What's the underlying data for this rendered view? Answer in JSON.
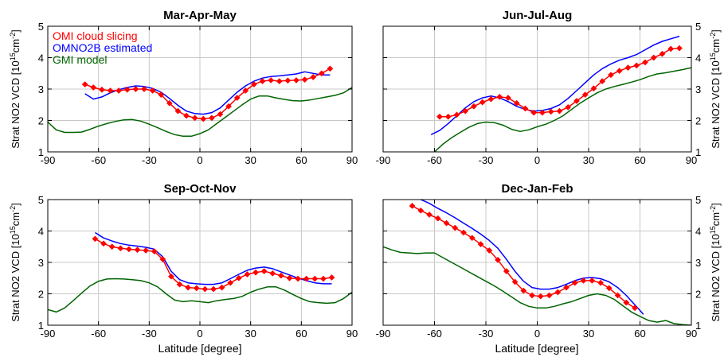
{
  "figure": {
    "xlabel": "Latitude [degree]",
    "ylabel": "Strat NO2 VCD [10",
    "ylabel_exp": "15",
    "ylabel_unit": "cm",
    "ylabel_unit_exp": "-2",
    "ylabel_close": "]"
  },
  "legend": {
    "entries": [
      {
        "name": "OMI cloud slicing",
        "color": "#ff0000"
      },
      {
        "name": "OMNO2B estimated",
        "color": "#0000ff"
      },
      {
        "name": "GMI model",
        "color": "#006400"
      }
    ]
  },
  "chart_data": [
    {
      "type": "line",
      "title": "Mar-Apr-May",
      "xlim": [
        -90,
        90
      ],
      "ylim": [
        1,
        5
      ],
      "xticks": [
        -90,
        -60,
        -30,
        0,
        30,
        60,
        90
      ],
      "yticks": [
        1,
        2,
        3,
        4,
        5
      ],
      "grid": true,
      "series": [
        {
          "name": "OMI cloud slicing",
          "color": "#ff0000",
          "marker": "diamond",
          "x": [
            -68,
            -63,
            -58,
            -53,
            -48,
            -43,
            -38,
            -33,
            -28,
            -23,
            -18,
            -13,
            -8,
            -3,
            2,
            7,
            12,
            17,
            22,
            27,
            32,
            37,
            42,
            47,
            52,
            57,
            62,
            67,
            72,
            77
          ],
          "y": [
            3.15,
            3.05,
            2.98,
            2.95,
            2.95,
            2.98,
            3.0,
            3.0,
            2.95,
            2.82,
            2.55,
            2.3,
            2.15,
            2.08,
            2.05,
            2.08,
            2.2,
            2.45,
            2.72,
            2.95,
            3.15,
            3.25,
            3.28,
            3.25,
            3.27,
            3.28,
            3.3,
            3.38,
            3.5,
            3.65
          ]
        },
        {
          "name": "OMNO2B estimated",
          "color": "#0000ff",
          "x": [
            -68,
            -63,
            -58,
            -53,
            -48,
            -43,
            -38,
            -33,
            -28,
            -23,
            -18,
            -13,
            -8,
            -3,
            2,
            7,
            12,
            17,
            22,
            27,
            32,
            37,
            42,
            47,
            52,
            57,
            62,
            67,
            72,
            77
          ],
          "y": [
            2.85,
            2.68,
            2.75,
            2.88,
            2.98,
            3.05,
            3.1,
            3.08,
            3.02,
            2.9,
            2.7,
            2.48,
            2.3,
            2.22,
            2.2,
            2.25,
            2.4,
            2.65,
            2.9,
            3.1,
            3.25,
            3.35,
            3.4,
            3.42,
            3.45,
            3.48,
            3.55,
            3.5,
            3.45,
            3.45
          ]
        },
        {
          "name": "GMI model",
          "color": "#006400",
          "x": [
            -90,
            -85,
            -80,
            -75,
            -70,
            -65,
            -60,
            -55,
            -50,
            -45,
            -40,
            -35,
            -30,
            -25,
            -20,
            -15,
            -10,
            -5,
            0,
            5,
            10,
            15,
            20,
            25,
            30,
            35,
            40,
            45,
            50,
            55,
            60,
            65,
            70,
            75,
            80,
            85,
            90
          ],
          "y": [
            1.95,
            1.7,
            1.62,
            1.62,
            1.63,
            1.72,
            1.82,
            1.9,
            1.97,
            2.02,
            2.03,
            1.98,
            1.88,
            1.77,
            1.65,
            1.55,
            1.5,
            1.5,
            1.58,
            1.7,
            1.9,
            2.1,
            2.3,
            2.5,
            2.68,
            2.78,
            2.78,
            2.72,
            2.67,
            2.63,
            2.62,
            2.65,
            2.7,
            2.75,
            2.8,
            2.88,
            3.05
          ]
        }
      ]
    },
    {
      "type": "line",
      "title": "Jun-Jul-Aug",
      "xlim": [
        -90,
        90
      ],
      "ylim": [
        1,
        5
      ],
      "xticks": [
        -90,
        -60,
        -30,
        0,
        30,
        60,
        90
      ],
      "yticks": [
        1,
        2,
        3,
        4,
        5
      ],
      "grid": true,
      "series": [
        {
          "name": "OMI cloud slicing",
          "color": "#ff0000",
          "marker": "diamond",
          "x": [
            -57,
            -52,
            -47,
            -42,
            -37,
            -32,
            -27,
            -22,
            -17,
            -12,
            -7,
            -2,
            3,
            8,
            13,
            18,
            23,
            28,
            33,
            38,
            43,
            48,
            53,
            58,
            63,
            68,
            73,
            78,
            83
          ],
          "y": [
            2.12,
            2.12,
            2.18,
            2.3,
            2.45,
            2.58,
            2.68,
            2.75,
            2.72,
            2.55,
            2.38,
            2.25,
            2.25,
            2.28,
            2.3,
            2.42,
            2.62,
            2.82,
            3.02,
            3.25,
            3.45,
            3.58,
            3.68,
            3.75,
            3.85,
            4.0,
            4.12,
            4.28,
            4.3
          ]
        },
        {
          "name": "OMNO2B estimated",
          "color": "#0000ff",
          "x": [
            -62,
            -57,
            -52,
            -47,
            -42,
            -37,
            -32,
            -27,
            -22,
            -17,
            -12,
            -7,
            -2,
            3,
            8,
            13,
            18,
            23,
            28,
            33,
            38,
            43,
            48,
            53,
            58,
            63,
            68,
            73,
            78,
            83
          ],
          "y": [
            1.55,
            1.68,
            1.9,
            2.15,
            2.4,
            2.6,
            2.72,
            2.78,
            2.72,
            2.6,
            2.45,
            2.35,
            2.3,
            2.32,
            2.38,
            2.5,
            2.7,
            2.95,
            3.2,
            3.45,
            3.65,
            3.8,
            3.92,
            4.0,
            4.1,
            4.25,
            4.4,
            4.52,
            4.6,
            4.68
          ]
        },
        {
          "name": "GMI model",
          "color": "#006400",
          "x": [
            -60,
            -55,
            -50,
            -45,
            -40,
            -35,
            -30,
            -25,
            -20,
            -15,
            -10,
            -5,
            0,
            5,
            10,
            15,
            20,
            25,
            30,
            35,
            40,
            45,
            50,
            55,
            60,
            65,
            70,
            75,
            80,
            85,
            90
          ],
          "y": [
            1.0,
            1.25,
            1.45,
            1.62,
            1.78,
            1.9,
            1.95,
            1.93,
            1.85,
            1.72,
            1.65,
            1.7,
            1.8,
            1.88,
            2.0,
            2.15,
            2.35,
            2.55,
            2.72,
            2.88,
            3.0,
            3.08,
            3.15,
            3.22,
            3.3,
            3.4,
            3.48,
            3.52,
            3.57,
            3.62,
            3.68
          ]
        }
      ]
    },
    {
      "type": "line",
      "title": "Sep-Oct-Nov",
      "xlim": [
        -90,
        90
      ],
      "ylim": [
        1,
        5
      ],
      "xticks": [
        -90,
        -60,
        -30,
        0,
        30,
        60,
        90
      ],
      "yticks": [
        1,
        2,
        3,
        4,
        5
      ],
      "grid": true,
      "series": [
        {
          "name": "OMI cloud slicing",
          "color": "#ff0000",
          "marker": "diamond",
          "x": [
            -62,
            -57,
            -52,
            -47,
            -42,
            -37,
            -32,
            -27,
            -22,
            -17,
            -12,
            -7,
            -2,
            3,
            8,
            13,
            18,
            23,
            28,
            33,
            38,
            43,
            48,
            53,
            58,
            63,
            68,
            73,
            78
          ],
          "y": [
            3.75,
            3.6,
            3.5,
            3.45,
            3.42,
            3.4,
            3.38,
            3.35,
            3.1,
            2.55,
            2.3,
            2.2,
            2.18,
            2.15,
            2.15,
            2.2,
            2.35,
            2.5,
            2.62,
            2.68,
            2.72,
            2.65,
            2.58,
            2.5,
            2.48,
            2.48,
            2.48,
            2.48,
            2.52
          ]
        },
        {
          "name": "OMNO2B estimated",
          "color": "#0000ff",
          "x": [
            -62,
            -57,
            -52,
            -47,
            -42,
            -37,
            -32,
            -27,
            -22,
            -17,
            -12,
            -7,
            -2,
            3,
            8,
            13,
            18,
            23,
            28,
            33,
            38,
            43,
            48,
            53,
            58,
            63,
            68,
            73,
            78
          ],
          "y": [
            3.95,
            3.78,
            3.68,
            3.6,
            3.55,
            3.52,
            3.48,
            3.42,
            3.18,
            2.72,
            2.45,
            2.35,
            2.32,
            2.3,
            2.3,
            2.35,
            2.48,
            2.62,
            2.75,
            2.82,
            2.85,
            2.8,
            2.7,
            2.6,
            2.5,
            2.42,
            2.35,
            2.32,
            2.32
          ]
        },
        {
          "name": "GMI model",
          "color": "#006400",
          "x": [
            -90,
            -85,
            -80,
            -75,
            -70,
            -65,
            -60,
            -55,
            -50,
            -45,
            -40,
            -35,
            -30,
            -25,
            -20,
            -15,
            -10,
            -5,
            0,
            5,
            10,
            15,
            20,
            25,
            30,
            35,
            40,
            45,
            50,
            55,
            60,
            65,
            70,
            75,
            80,
            85,
            90
          ],
          "y": [
            1.5,
            1.42,
            1.55,
            1.78,
            2.02,
            2.25,
            2.4,
            2.47,
            2.48,
            2.47,
            2.45,
            2.42,
            2.35,
            2.22,
            2.0,
            1.8,
            1.75,
            1.78,
            1.75,
            1.72,
            1.78,
            1.82,
            1.85,
            1.92,
            2.05,
            2.15,
            2.22,
            2.22,
            2.12,
            1.98,
            1.85,
            1.75,
            1.72,
            1.7,
            1.72,
            1.85,
            2.05
          ]
        }
      ]
    },
    {
      "type": "line",
      "title": "Dec-Jan-Feb",
      "xlim": [
        -90,
        90
      ],
      "ylim": [
        1,
        5
      ],
      "xticks": [
        -90,
        -60,
        -30,
        0,
        30,
        60,
        90
      ],
      "yticks": [
        1,
        2,
        3,
        4,
        5
      ],
      "grid": true,
      "series": [
        {
          "name": "OMI cloud slicing",
          "color": "#ff0000",
          "marker": "diamond",
          "x": [
            -73,
            -68,
            -63,
            -58,
            -53,
            -48,
            -43,
            -38,
            -33,
            -28,
            -23,
            -18,
            -13,
            -8,
            -3,
            2,
            7,
            12,
            17,
            22,
            27,
            32,
            37,
            42,
            47,
            52,
            57
          ],
          "y": [
            4.8,
            4.65,
            4.52,
            4.4,
            4.25,
            4.1,
            3.95,
            3.78,
            3.58,
            3.38,
            3.08,
            2.72,
            2.38,
            2.1,
            1.95,
            1.92,
            1.95,
            2.05,
            2.2,
            2.35,
            2.42,
            2.42,
            2.35,
            2.18,
            1.95,
            1.72,
            1.55
          ]
        },
        {
          "name": "OMNO2B estimated",
          "color": "#0000ff",
          "x": [
            -68,
            -63,
            -58,
            -53,
            -48,
            -43,
            -38,
            -33,
            -28,
            -23,
            -18,
            -13,
            -8,
            -3,
            2,
            7,
            12,
            17,
            22,
            27,
            32,
            37,
            42,
            47,
            52,
            57,
            62
          ],
          "y": [
            5.0,
            4.88,
            4.72,
            4.58,
            4.42,
            4.25,
            4.08,
            3.9,
            3.7,
            3.45,
            3.1,
            2.72,
            2.4,
            2.2,
            2.15,
            2.15,
            2.2,
            2.3,
            2.42,
            2.5,
            2.52,
            2.48,
            2.38,
            2.2,
            1.95,
            1.65,
            1.35
          ]
        },
        {
          "name": "GMI model",
          "color": "#006400",
          "x": [
            -90,
            -85,
            -80,
            -75,
            -70,
            -65,
            -60,
            -55,
            -50,
            -45,
            -40,
            -35,
            -30,
            -25,
            -20,
            -15,
            -10,
            -5,
            0,
            5,
            10,
            15,
            20,
            25,
            30,
            35,
            40,
            45,
            50,
            55,
            60,
            65,
            70,
            75,
            80,
            85,
            90
          ],
          "y": [
            3.5,
            3.4,
            3.32,
            3.3,
            3.28,
            3.3,
            3.3,
            3.15,
            3.0,
            2.85,
            2.7,
            2.55,
            2.4,
            2.25,
            2.08,
            1.9,
            1.72,
            1.6,
            1.55,
            1.55,
            1.6,
            1.68,
            1.75,
            1.85,
            1.95,
            2.0,
            1.95,
            1.82,
            1.62,
            1.42,
            1.28,
            1.15,
            1.1,
            1.15,
            1.05,
            1.02,
            1.0
          ]
        }
      ]
    }
  ]
}
